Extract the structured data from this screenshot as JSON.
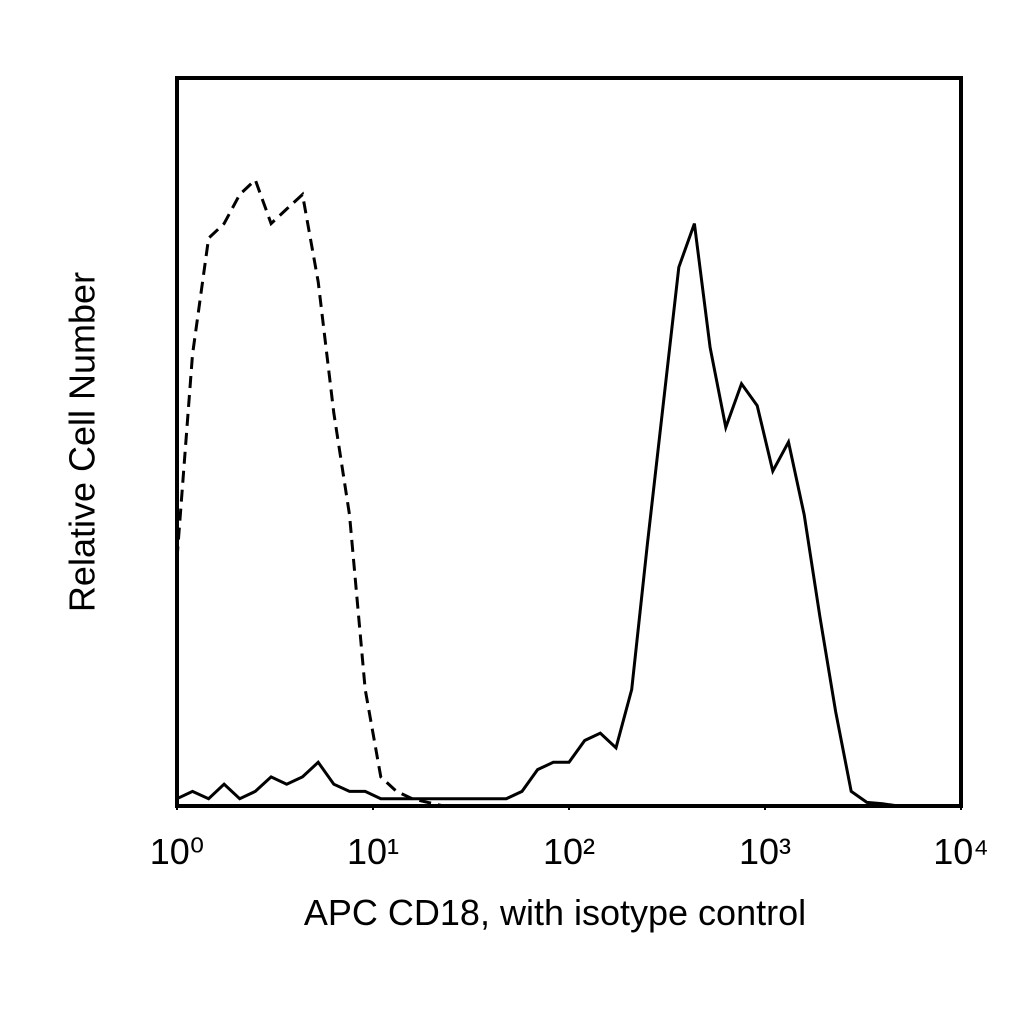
{
  "chart_data": {
    "type": "line",
    "xlabel": "APC CD18, with isotype control",
    "ylabel": "Relative Cell Number",
    "xscale": "log",
    "xlim": [
      1,
      10000
    ],
    "xticks": [
      {
        "value": 1,
        "label": "10⁰"
      },
      {
        "value": 10,
        "label": "10¹"
      },
      {
        "value": 100,
        "label": "10²"
      },
      {
        "value": 1000,
        "label": "10³"
      },
      {
        "value": 10000,
        "label": "10⁴"
      }
    ],
    "ylim": [
      0,
      100
    ],
    "x": [
      1,
      1.2,
      1.45,
      1.74,
      2.09,
      2.51,
      3.02,
      3.63,
      4.37,
      5.25,
      6.31,
      7.59,
      9.12,
      10.96,
      13.18,
      15.85,
      19.05,
      22.91,
      27.54,
      33.11,
      39.81,
      47.86,
      57.54,
      69.18,
      83.18,
      100,
      120.2,
      144.5,
      173.8,
      208.9,
      251.2,
      302,
      363.1,
      436.5,
      524.8,
      631,
      758.6,
      912,
      1096,
      1318,
      1585,
      1905,
      2291,
      2754,
      3311,
      3981,
      4786,
      5754,
      6918,
      8318,
      10000
    ],
    "series": [
      {
        "color": "#000000",
        "line_style": "dashed",
        "values": [
          34,
          62,
          78,
          80,
          84,
          86,
          80,
          82,
          84,
          72,
          54,
          40,
          16,
          4,
          2,
          1,
          0.5,
          0,
          0,
          0,
          0,
          0,
          0,
          0,
          0,
          0,
          0,
          0,
          0,
          0,
          0,
          0,
          0,
          0,
          0,
          0,
          0,
          0,
          0,
          0,
          0,
          0,
          0,
          0,
          0,
          0,
          0,
          0,
          0,
          0,
          0
        ]
      },
      {
        "color": "#000000",
        "line_style": "solid",
        "values": [
          1,
          2,
          1,
          3,
          1,
          2,
          4,
          3,
          4,
          6,
          3,
          2,
          2,
          1,
          1,
          1,
          1,
          1,
          1,
          1,
          1,
          1,
          2,
          5,
          6,
          6,
          9,
          10,
          8,
          16,
          36,
          55,
          74,
          80,
          63,
          52,
          58,
          55,
          46,
          50,
          40,
          26,
          13,
          2,
          0.5,
          0.3,
          0,
          0,
          0,
          0,
          0
        ]
      }
    ]
  }
}
